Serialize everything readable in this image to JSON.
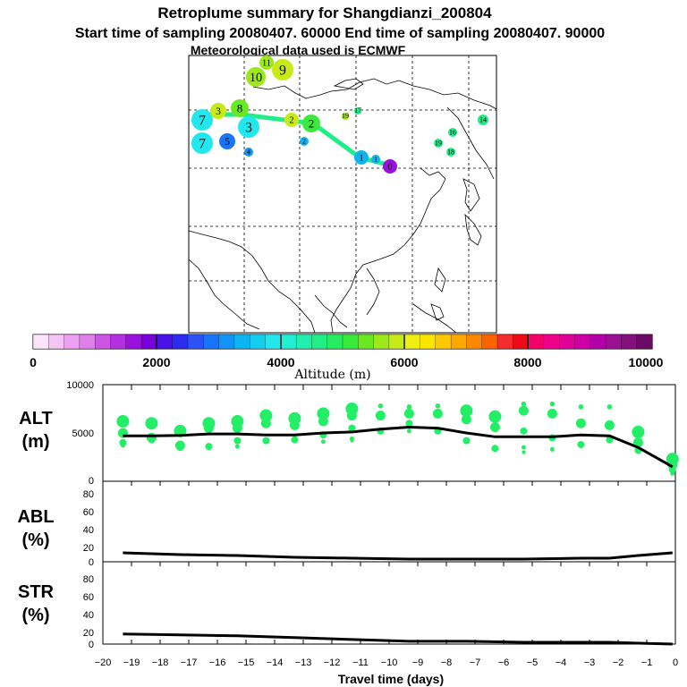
{
  "title_line1": "Retroplume summary for Shangdianzi_200804",
  "title_line2": "Start time of sampling 20080407. 60000     End time of sampling 20080407. 90000",
  "title_line3": "Meteorological data used is ECMWF",
  "colorbar": {
    "label": "Altitude (m)",
    "tick_labels": [
      "0",
      "2000",
      "4000",
      "6000",
      "8000",
      "10000"
    ],
    "colors": [
      "#fbe3fb",
      "#f4c4f4",
      "#eba1f0",
      "#de7fea",
      "#cc55e4",
      "#b42fe0",
      "#9a10dc",
      "#7800d8",
      "#4b12e6",
      "#2b2cf0",
      "#2a52f6",
      "#1874f8",
      "#1194f6",
      "#0db4f2",
      "#12cff0",
      "#22e8ee",
      "#22eed2",
      "#22efae",
      "#22ee88",
      "#28ec60",
      "#3aea3a",
      "#6ae822",
      "#9ce818",
      "#c8ea18",
      "#eeee10",
      "#fce600",
      "#fcc800",
      "#fca800",
      "#fc8800",
      "#fa6400",
      "#f42c2c",
      "#ee0a18",
      "#f4006a",
      "#f00088",
      "#e00098",
      "#cc00a4",
      "#b400a8",
      "#9c1094",
      "#84107e",
      "#6a0c66"
    ]
  },
  "map_labels": {
    "clusters_red": [
      "1",
      "2",
      "3",
      "4",
      "5",
      "6",
      "7",
      "8",
      "9",
      "10",
      "11",
      "14",
      "15",
      "16",
      "17",
      "18",
      "19"
    ],
    "clusters_blue": [
      "0",
      "1",
      "2",
      "3",
      "4",
      "5",
      "6",
      "7",
      "8"
    ]
  },
  "panels": {
    "alt": {
      "label_line1": "ALT",
      "label_line2": "(m)",
      "ticks": [
        "10000",
        "5000",
        "0"
      ]
    },
    "abl": {
      "label_line1": "ABL",
      "label_line2": "(%)",
      "ticks": [
        "80",
        "60",
        "40",
        "20",
        "0"
      ]
    },
    "str": {
      "label_line1": "STR",
      "label_line2": "(%)",
      "ticks": [
        "80",
        "60",
        "40",
        "20",
        "0"
      ]
    }
  },
  "xaxis": {
    "label": "Travel time (days)",
    "tick_labels": [
      "−20",
      "−19",
      "−18",
      "−17",
      "−16",
      "−15",
      "−14",
      "−13",
      "−12",
      "−11",
      "−10",
      "−9",
      "−8",
      "−7",
      "−6",
      "−5",
      "−4",
      "−3",
      "−2",
      "−1",
      "0"
    ]
  },
  "chart_data": [
    {
      "type": "line",
      "title": "ALT (m)",
      "xlabel": "Travel time (days)",
      "ylabel": "ALT (m)",
      "xlim": [
        -20,
        0
      ],
      "ylim": [
        0,
        10000
      ],
      "x": [
        -19.3,
        -18.3,
        -17.3,
        -16.3,
        -15.3,
        -14.3,
        -13.3,
        -12.3,
        -11.3,
        -10.3,
        -9.3,
        -8.3,
        -7.3,
        -6.3,
        -5.3,
        -4.3,
        -3.3,
        -2.3,
        -1.3,
        -0.1
      ],
      "mean_altitude": [
        4700,
        4700,
        4750,
        4900,
        4900,
        4800,
        4800,
        5000,
        5100,
        5400,
        5600,
        5500,
        5000,
        4600,
        4600,
        4600,
        4800,
        4700,
        3500,
        1500
      ],
      "cluster_altitudes": [
        [
          6200,
          5000,
          4000,
          3700
        ],
        [
          6000,
          4500,
          4300
        ],
        [
          5200,
          3700,
          3500
        ],
        [
          6000,
          5500,
          3600
        ],
        [
          6200,
          5500,
          4200,
          3600
        ],
        [
          6800,
          6000,
          4200
        ],
        [
          6500,
          5800,
          4300
        ],
        [
          7000,
          6200,
          4800,
          4100
        ],
        [
          7500,
          6800,
          5500,
          4400,
          4200
        ],
        [
          7800,
          6800,
          5200
        ],
        [
          7700,
          7000,
          6000,
          5200
        ],
        [
          7800,
          7000,
          5200
        ],
        [
          7300,
          6400,
          4200
        ],
        [
          6700,
          5600,
          3400
        ],
        [
          8000,
          7300,
          5200,
          3500,
          3000
        ],
        [
          8000,
          7000,
          4500,
          3300
        ],
        [
          7700,
          6000,
          3800
        ],
        [
          7700,
          5800,
          4300
        ],
        [
          5100,
          4000,
          3200
        ],
        [
          2300,
          1700,
          1200,
          800
        ]
      ]
    },
    {
      "type": "line",
      "title": "ABL (%)",
      "xlabel": "Travel time (days)",
      "ylabel": "ABL (%)",
      "xlim": [
        -20,
        0
      ],
      "ylim": [
        0,
        90
      ],
      "x": [
        -19.3,
        -17.3,
        -15.3,
        -13.3,
        -11.3,
        -9.3,
        -7.3,
        -5.3,
        -3.3,
        -2.3,
        -1.3,
        -0.1
      ],
      "values": [
        10,
        8,
        7,
        5,
        4,
        3,
        3,
        3,
        4,
        4,
        7,
        10
      ]
    },
    {
      "type": "line",
      "title": "STR (%)",
      "xlabel": "Travel time (days)",
      "ylabel": "STR (%)",
      "xlim": [
        -20,
        0
      ],
      "ylim": [
        0,
        90
      ],
      "x": [
        -19.3,
        -17.3,
        -15.3,
        -13.3,
        -11.3,
        -9.3,
        -7.3,
        -5.3,
        -3.3,
        -2.3,
        -1.3,
        -0.1
      ],
      "values": [
        11,
        10,
        9,
        7,
        5,
        3,
        3,
        2,
        2,
        2,
        1,
        0
      ]
    }
  ]
}
